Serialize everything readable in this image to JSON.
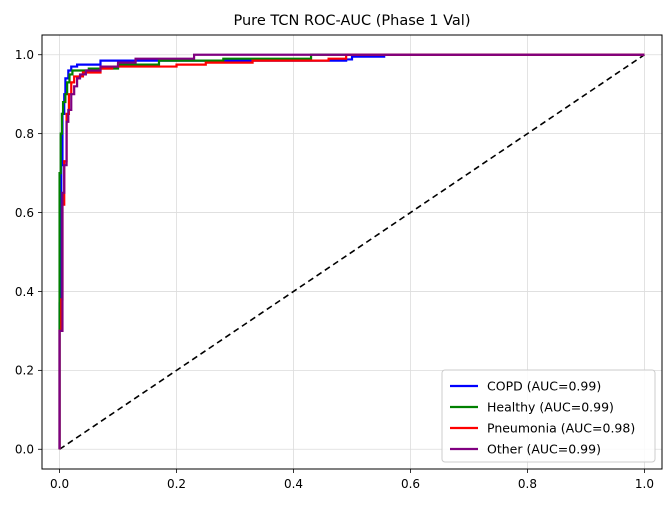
{
  "chart_data": {
    "type": "line",
    "title": "Pure TCN ROC-AUC (Phase 1 Val)",
    "xlabel": "",
    "ylabel": "",
    "xlim": [
      -0.03,
      1.03
    ],
    "ylim": [
      -0.05,
      1.05
    ],
    "x_ticks": [
      0.0,
      0.2,
      0.4,
      0.6,
      0.8,
      1.0
    ],
    "y_ticks": [
      0.0,
      0.2,
      0.4,
      0.6,
      0.8,
      1.0
    ],
    "x_tick_labels": [
      "0.0",
      "0.2",
      "0.4",
      "0.6",
      "0.8",
      "1.0"
    ],
    "y_tick_labels": [
      "0.0",
      "0.2",
      "0.4",
      "0.6",
      "0.8",
      "1.0"
    ],
    "grid": true,
    "legend_position": "lower-right",
    "series": [
      {
        "name": "COPD (AUC=0.99)",
        "color": "#0000ff",
        "style": "solid",
        "points": [
          [
            0,
            0
          ],
          [
            0,
            0.37
          ],
          [
            0.002,
            0.37
          ],
          [
            0.002,
            0.55
          ],
          [
            0.003,
            0.55
          ],
          [
            0.003,
            0.72
          ],
          [
            0.005,
            0.72
          ],
          [
            0.005,
            0.85
          ],
          [
            0.008,
            0.85
          ],
          [
            0.008,
            0.9
          ],
          [
            0.01,
            0.9
          ],
          [
            0.01,
            0.94
          ],
          [
            0.015,
            0.94
          ],
          [
            0.015,
            0.96
          ],
          [
            0.02,
            0.96
          ],
          [
            0.02,
            0.97
          ],
          [
            0.03,
            0.97
          ],
          [
            0.03,
            0.975
          ],
          [
            0.07,
            0.975
          ],
          [
            0.07,
            0.985
          ],
          [
            0.43,
            0.985
          ],
          [
            0.43,
            0.985
          ],
          [
            0.49,
            0.985
          ],
          [
            0.49,
            0.988
          ],
          [
            0.5,
            0.988
          ],
          [
            0.5,
            0.995
          ],
          [
            0.555,
            0.995
          ],
          [
            0.555,
            1.0
          ],
          [
            1,
            1
          ]
        ]
      },
      {
        "name": "Healthy (AUC=0.99)",
        "color": "#008000",
        "style": "solid",
        "points": [
          [
            0,
            0
          ],
          [
            0,
            0.7
          ],
          [
            0.002,
            0.7
          ],
          [
            0.002,
            0.8
          ],
          [
            0.004,
            0.8
          ],
          [
            0.004,
            0.85
          ],
          [
            0.006,
            0.85
          ],
          [
            0.006,
            0.88
          ],
          [
            0.01,
            0.88
          ],
          [
            0.01,
            0.9
          ],
          [
            0.013,
            0.9
          ],
          [
            0.013,
            0.93
          ],
          [
            0.017,
            0.93
          ],
          [
            0.017,
            0.95
          ],
          [
            0.022,
            0.95
          ],
          [
            0.022,
            0.96
          ],
          [
            0.05,
            0.96
          ],
          [
            0.05,
            0.965
          ],
          [
            0.1,
            0.965
          ],
          [
            0.1,
            0.975
          ],
          [
            0.17,
            0.975
          ],
          [
            0.17,
            0.985
          ],
          [
            0.28,
            0.985
          ],
          [
            0.28,
            0.99
          ],
          [
            0.43,
            0.99
          ],
          [
            0.43,
            1.0
          ],
          [
            1,
            1
          ]
        ]
      },
      {
        "name": "Pneumonia (AUC=0.98)",
        "color": "#ff0000",
        "style": "solid",
        "points": [
          [
            0,
            0
          ],
          [
            0,
            0.3
          ],
          [
            0.003,
            0.3
          ],
          [
            0.003,
            0.38
          ],
          [
            0.005,
            0.38
          ],
          [
            0.005,
            0.62
          ],
          [
            0.008,
            0.62
          ],
          [
            0.008,
            0.73
          ],
          [
            0.012,
            0.73
          ],
          [
            0.012,
            0.85
          ],
          [
            0.016,
            0.85
          ],
          [
            0.016,
            0.9
          ],
          [
            0.02,
            0.9
          ],
          [
            0.02,
            0.93
          ],
          [
            0.025,
            0.93
          ],
          [
            0.025,
            0.945
          ],
          [
            0.04,
            0.945
          ],
          [
            0.04,
            0.955
          ],
          [
            0.07,
            0.955
          ],
          [
            0.07,
            0.965
          ],
          [
            0.09,
            0.965
          ],
          [
            0.09,
            0.97
          ],
          [
            0.2,
            0.97
          ],
          [
            0.2,
            0.975
          ],
          [
            0.25,
            0.975
          ],
          [
            0.25,
            0.98
          ],
          [
            0.33,
            0.98
          ],
          [
            0.33,
            0.985
          ],
          [
            0.46,
            0.985
          ],
          [
            0.46,
            0.99
          ],
          [
            0.49,
            0.99
          ],
          [
            0.49,
            1.0
          ],
          [
            1,
            1
          ]
        ]
      },
      {
        "name": "Other (AUC=0.99)",
        "color": "#800080",
        "style": "solid",
        "points": [
          [
            0,
            0
          ],
          [
            0,
            0.3
          ],
          [
            0.005,
            0.3
          ],
          [
            0.005,
            0.65
          ],
          [
            0.008,
            0.65
          ],
          [
            0.008,
            0.72
          ],
          [
            0.012,
            0.72
          ],
          [
            0.012,
            0.83
          ],
          [
            0.015,
            0.83
          ],
          [
            0.015,
            0.86
          ],
          [
            0.02,
            0.86
          ],
          [
            0.02,
            0.9
          ],
          [
            0.025,
            0.9
          ],
          [
            0.025,
            0.92
          ],
          [
            0.03,
            0.92
          ],
          [
            0.03,
            0.94
          ],
          [
            0.035,
            0.94
          ],
          [
            0.035,
            0.95
          ],
          [
            0.045,
            0.95
          ],
          [
            0.045,
            0.96
          ],
          [
            0.07,
            0.96
          ],
          [
            0.07,
            0.97
          ],
          [
            0.1,
            0.97
          ],
          [
            0.1,
            0.98
          ],
          [
            0.13,
            0.98
          ],
          [
            0.13,
            0.99
          ],
          [
            0.23,
            0.99
          ],
          [
            0.23,
            1.0
          ],
          [
            1,
            1
          ]
        ]
      }
    ],
    "reference_line": {
      "name": "chance",
      "color": "#000000",
      "style": "dashed",
      "points": [
        [
          0,
          0
        ],
        [
          1,
          1
        ]
      ]
    }
  }
}
